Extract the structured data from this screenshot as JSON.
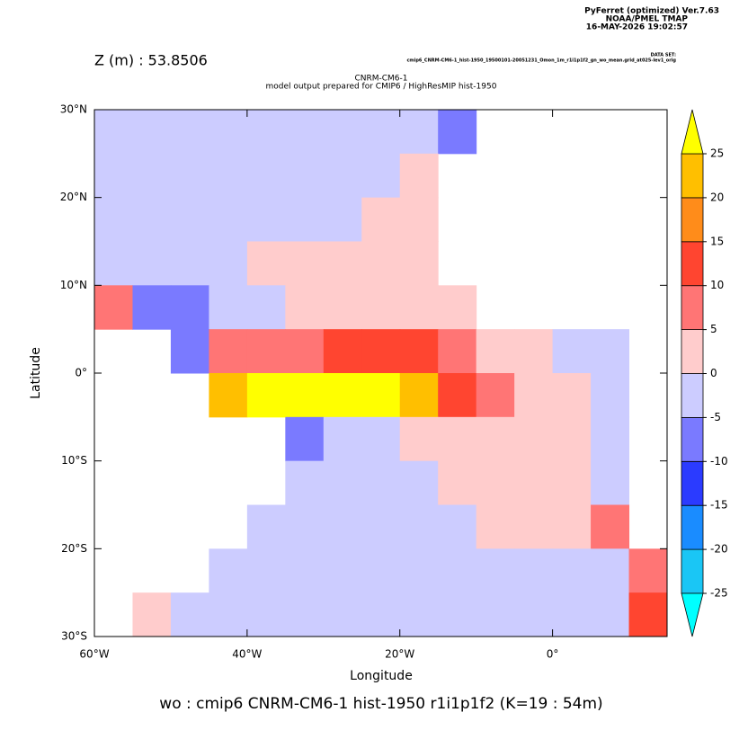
{
  "chart_data": {
    "type": "shaded-map",
    "header": [
      "PyFerret (optimized) Ver.7.63",
      "NOAA/PMEL TMAP",
      "16-MAY-2026 19:02:57"
    ],
    "depth_label": "Z (m) : 53.8506",
    "dataset_heading": "DATA SET:",
    "dataset": "cmip6_CNRM-CM6-1_hist-1950_19500101-20051231_Omon_1m_r1i1p1f2_gn_wo_mean.grid_at025-lev1_orig",
    "title": "CNRM-CM6-1",
    "subtitle": "model output prepared for CMIP6 / HighResMIP hist-1950",
    "xlabel": "Longitude",
    "ylabel": "Latitude",
    "footer": "wo : cmip6 CNRM-CM6-1 hist-1950 r1i1p1f2   (K=19 : 54m)",
    "xlim": [
      -60,
      15
    ],
    "ylim": [
      -30,
      30
    ],
    "xticks": [
      {
        "value": -60,
        "label": "60°W"
      },
      {
        "value": -40,
        "label": "40°W"
      },
      {
        "value": -20,
        "label": "20°W"
      },
      {
        "value": 0,
        "label": "0°"
      }
    ],
    "yticks": [
      {
        "value": -30,
        "label": "30°S"
      },
      {
        "value": -20,
        "label": "20°S"
      },
      {
        "value": -10,
        "label": "10°S"
      },
      {
        "value": 0,
        "label": "0°"
      },
      {
        "value": 10,
        "label": "10°N"
      },
      {
        "value": 20,
        "label": "20°N"
      },
      {
        "value": 30,
        "label": "30°N"
      }
    ],
    "x": [
      -57.5,
      -52.5,
      -47.5,
      -42.5,
      -37.5,
      -32.5,
      -27.5,
      -22.5,
      -17.5,
      -12.5,
      -7.5,
      -2.5,
      2.5,
      7.5,
      12.5
    ],
    "y": [
      27.5,
      22.5,
      17.5,
      12.5,
      7.5,
      2.5,
      -2.5,
      -7.5,
      -12.5,
      -17.5,
      -22.5,
      -27.5
    ],
    "z": [
      [
        -2,
        -2,
        -2,
        -2,
        -2,
        -2,
        -2,
        -2,
        -2,
        -6,
        null,
        null,
        null,
        null,
        null
      ],
      [
        -2,
        -2,
        -2,
        -2,
        -2,
        -2,
        -2,
        -2,
        3,
        null,
        null,
        null,
        null,
        null,
        null
      ],
      [
        -2,
        -2,
        -2,
        -2,
        -2,
        -2,
        -2,
        2,
        3,
        null,
        null,
        null,
        null,
        null,
        null
      ],
      [
        -2,
        -2,
        -2,
        -2,
        1,
        2,
        2,
        2,
        2,
        null,
        null,
        null,
        null,
        null,
        null
      ],
      [
        5,
        -6,
        -8,
        -4,
        -3,
        2,
        2,
        2,
        2,
        2,
        null,
        null,
        null,
        null,
        null
      ],
      [
        null,
        null,
        -10,
        5,
        8,
        8,
        10,
        12,
        10,
        6,
        4,
        2,
        -1,
        -2,
        null
      ],
      [
        null,
        null,
        null,
        20,
        27,
        27,
        27,
        27,
        22,
        12,
        6,
        3,
        1,
        -2,
        null
      ],
      [
        null,
        null,
        null,
        null,
        null,
        -6,
        -3,
        -2,
        2,
        2,
        2,
        2,
        2,
        -3,
        null
      ],
      [
        null,
        null,
        null,
        null,
        null,
        -3,
        -2,
        -2,
        -2,
        2,
        2,
        2,
        2,
        -2,
        null
      ],
      [
        null,
        null,
        null,
        null,
        -2,
        -2,
        -2,
        -2,
        -2,
        -2,
        2,
        2,
        2,
        8,
        null
      ],
      [
        null,
        null,
        null,
        -1,
        -2,
        -2,
        -2,
        -2,
        -2,
        -2,
        -2,
        -2,
        -2,
        -2,
        6
      ],
      [
        null,
        3,
        -2,
        -2,
        -2,
        -2,
        -2,
        -2,
        -2,
        -2,
        -2,
        -2,
        -2,
        -2,
        10
      ]
    ],
    "land_color": "#ffffff",
    "levels": [
      -25,
      -20,
      -15,
      -10,
      -5,
      0,
      5,
      10,
      15,
      20,
      25
    ],
    "colors": [
      "#00ffff",
      "#1ac6f5",
      "#1a8cff",
      "#2b3bff",
      "#7a7aff",
      "#ccccff",
      "#ffcccc",
      "#ff7575",
      "#ff4530",
      "#ff8c1a",
      "#ffbf00",
      "#ffff00"
    ]
  }
}
